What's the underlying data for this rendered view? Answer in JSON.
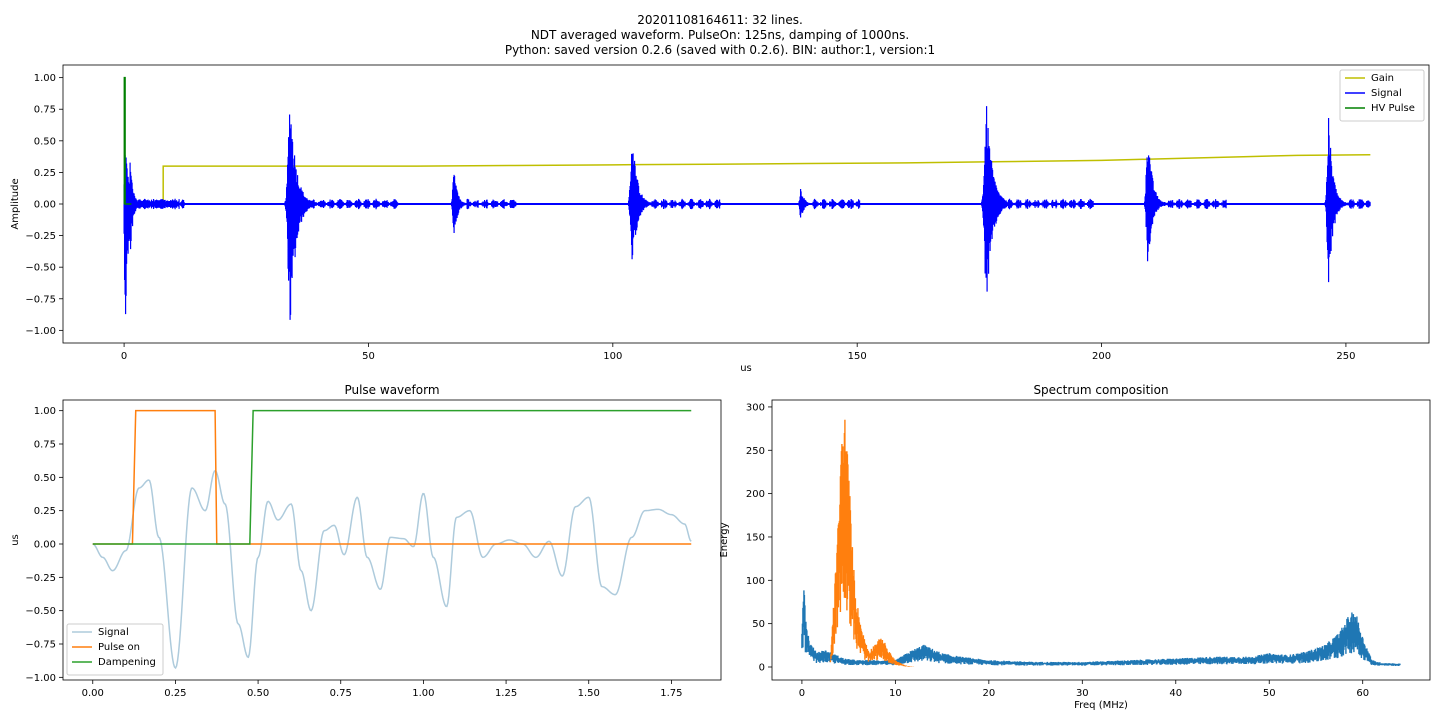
{
  "figure": {
    "title_lines": [
      "20201108164611: 32 lines.",
      "NDT averaged waveform. PulseOn: 125ns, damping of 1000ns.",
      "Python: saved version 0.2.6 (saved with 0.2.6). BIN: author:1, version:1"
    ]
  },
  "chart_data": [
    {
      "id": "top",
      "type": "line",
      "title": "",
      "xlabel": "us",
      "ylabel": "Amplitude",
      "xlim": [
        -12.5,
        267
      ],
      "ylim": [
        -1.1,
        1.1
      ],
      "xticks": [
        0,
        50,
        100,
        150,
        200,
        250
      ],
      "xtick_labels": [
        "0",
        "50",
        "100",
        "150",
        "200",
        "250"
      ],
      "yticks": [
        -1.0,
        -0.75,
        -0.5,
        -0.25,
        0.0,
        0.25,
        0.5,
        0.75,
        1.0
      ],
      "ytick_labels": [
        "−1.00",
        "−0.75",
        "−0.50",
        "−0.25",
        "0.00",
        "0.25",
        "0.50",
        "0.75",
        "1.00"
      ],
      "legend_position": "upper-right",
      "series": [
        {
          "name": "Gain",
          "color": "#bfbf00",
          "kind": "step",
          "x": [
            0,
            8,
            8,
            20,
            40,
            60,
            80,
            100,
            120,
            140,
            160,
            180,
            200,
            210,
            220,
            230,
            240,
            255
          ],
          "y": [
            0,
            0,
            0.3,
            0.3,
            0.3,
            0.3,
            0.305,
            0.31,
            0.315,
            0.32,
            0.325,
            0.335,
            0.345,
            0.355,
            0.365,
            0.375,
            0.385,
            0.39
          ]
        },
        {
          "name": "Signal",
          "color": "#0000ff",
          "kind": "bursts",
          "x_range": [
            0,
            255
          ],
          "bursts": [
            {
              "t": 0.3,
              "amp_pos": 0.5,
              "amp_neg": -0.93,
              "width": 1.2
            },
            {
              "t": 1.3,
              "amp_pos": 0.36,
              "amp_neg": -0.4,
              "width": 1.0
            },
            {
              "t": 34,
              "amp_pos": 0.86,
              "amp_neg": -0.99,
              "width": 2.2
            },
            {
              "t": 67.5,
              "amp_pos": 0.27,
              "amp_neg": -0.29,
              "width": 1.3
            },
            {
              "t": 104,
              "amp_pos": 0.57,
              "amp_neg": -0.5,
              "width": 1.8
            },
            {
              "t": 138.5,
              "amp_pos": 0.13,
              "amp_neg": -0.13,
              "width": 1.2
            },
            {
              "t": 176.5,
              "amp_pos": 0.78,
              "amp_neg": -0.8,
              "width": 2.2
            },
            {
              "t": 209.5,
              "amp_pos": 0.61,
              "amp_neg": -0.5,
              "width": 1.6
            },
            {
              "t": 246.5,
              "amp_pos": 0.69,
              "amp_neg": -0.66,
              "width": 1.6
            }
          ]
        },
        {
          "name": "HV Pulse",
          "color": "#008000",
          "kind": "step",
          "x": [
            0,
            0.05,
            0.05,
            0.2,
            0.2,
            1.5
          ],
          "y": [
            0,
            0,
            1.0,
            1.0,
            0,
            0
          ]
        }
      ]
    },
    {
      "id": "pulse",
      "type": "line",
      "title": "Pulse waveform",
      "xlabel": "",
      "ylabel": "us",
      "xlim": [
        -0.09,
        1.9
      ],
      "ylim": [
        -1.02,
        1.08
      ],
      "xticks": [
        0,
        0.25,
        0.5,
        0.75,
        1.0,
        1.25,
        1.5,
        1.75
      ],
      "xtick_labels": [
        "0.00",
        "0.25",
        "0.50",
        "0.75",
        "1.00",
        "1.25",
        "1.50",
        "1.75"
      ],
      "yticks": [
        -1.0,
        -0.75,
        -0.5,
        -0.25,
        0.0,
        0.25,
        0.5,
        0.75,
        1.0
      ],
      "ytick_labels": [
        "−1.00",
        "−0.75",
        "−0.50",
        "−0.25",
        "0.00",
        "0.25",
        "0.50",
        "0.75",
        "1.00"
      ],
      "legend_position": "lower-left",
      "series": [
        {
          "name": "Signal",
          "color": "#aecbdc",
          "kind": "smooth",
          "x": [
            0,
            0.03,
            0.06,
            0.1,
            0.14,
            0.17,
            0.2,
            0.25,
            0.3,
            0.34,
            0.37,
            0.4,
            0.44,
            0.47,
            0.5,
            0.53,
            0.56,
            0.6,
            0.63,
            0.66,
            0.7,
            0.73,
            0.76,
            0.8,
            0.83,
            0.87,
            0.9,
            0.94,
            0.97,
            1.0,
            1.03,
            1.07,
            1.1,
            1.14,
            1.18,
            1.22,
            1.26,
            1.3,
            1.34,
            1.38,
            1.42,
            1.46,
            1.5,
            1.54,
            1.58,
            1.63,
            1.67,
            1.71,
            1.75,
            1.79,
            1.81
          ],
          "y": [
            0,
            -0.1,
            -0.2,
            -0.05,
            0.42,
            0.48,
            0.05,
            -0.93,
            0.42,
            0.25,
            0.55,
            0.3,
            -0.6,
            -0.85,
            -0.1,
            0.32,
            0.18,
            0.3,
            -0.2,
            -0.5,
            0.1,
            0.14,
            -0.08,
            0.35,
            -0.1,
            -0.34,
            0.05,
            0.04,
            -0.02,
            0.38,
            -0.1,
            -0.47,
            0.2,
            0.25,
            -0.1,
            0.0,
            0.03,
            0.0,
            -0.1,
            0.02,
            -0.24,
            0.28,
            0.35,
            -0.32,
            -0.38,
            0.05,
            0.25,
            0.26,
            0.22,
            0.15,
            0.02
          ]
        },
        {
          "name": "Pulse on",
          "color": "#ff7f0e",
          "kind": "step",
          "x": [
            0,
            0.12,
            0.13,
            0.37,
            0.375,
            1.81
          ],
          "y": [
            0,
            0,
            1.0,
            1.0,
            0,
            0
          ]
        },
        {
          "name": "Dampening",
          "color": "#2ca02c",
          "kind": "step",
          "x": [
            0,
            0.475,
            0.485,
            1.81
          ],
          "y": [
            0,
            0,
            1.0,
            1.0
          ]
        }
      ]
    },
    {
      "id": "spectrum",
      "type": "line",
      "title": "Spectrum composition",
      "xlabel": "Freq (MHz)",
      "ylabel": "Energy",
      "xlim": [
        -3.2,
        67.2
      ],
      "ylim": [
        -15,
        308
      ],
      "xticks": [
        0,
        10,
        20,
        30,
        40,
        50,
        60
      ],
      "xtick_labels": [
        "0",
        "10",
        "20",
        "30",
        "40",
        "50",
        "60"
      ],
      "yticks": [
        0,
        50,
        100,
        150,
        200,
        250,
        300
      ],
      "ytick_labels": [
        "0",
        "50",
        "100",
        "150",
        "200",
        "250",
        "300"
      ],
      "legend_position": "none",
      "series": [
        {
          "name": "",
          "color": "#1f77b4",
          "kind": "noisy_envelope",
          "x": [
            0,
            0.2,
            0.4,
            0.8,
            1.5,
            2.5,
            3.5,
            4.5,
            6,
            8,
            10,
            11.5,
            13,
            15,
            17,
            20,
            25,
            30,
            35,
            40,
            44,
            48,
            50,
            52,
            54,
            56,
            57.5,
            58.5,
            59.2,
            60,
            61,
            62,
            64
          ],
          "y": [
            45,
            112,
            60,
            30,
            18,
            20,
            15,
            10,
            8,
            8,
            8,
            18,
            26,
            16,
            12,
            8,
            6,
            6,
            8,
            10,
            12,
            12,
            16,
            14,
            18,
            26,
            40,
            60,
            66,
            35,
            8,
            5,
            4
          ]
        },
        {
          "name": "",
          "color": "#ff7f0e",
          "kind": "noisy_envelope",
          "x": [
            0,
            3.0,
            3.8,
            4.2,
            4.6,
            5.0,
            5.4,
            5.8,
            6.5,
            7.2,
            8.0,
            8.6,
            9.2,
            10.0,
            11.0,
            12,
            64
          ],
          "y": [
            0,
            0,
            150,
            260,
            292,
            230,
            140,
            80,
            40,
            18,
            30,
            35,
            20,
            8,
            2,
            0,
            0
          ]
        }
      ]
    }
  ]
}
